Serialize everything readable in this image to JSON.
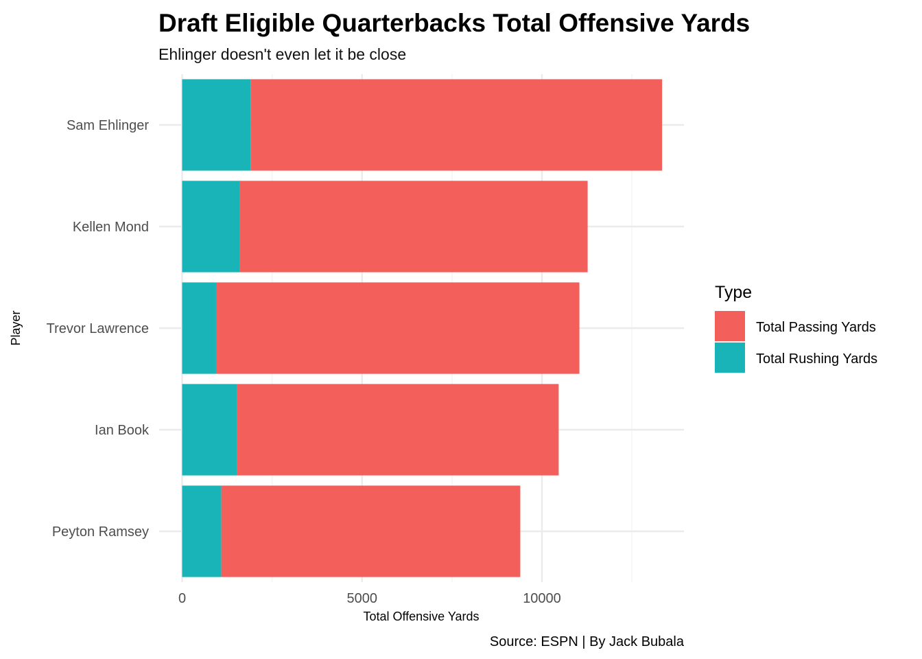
{
  "chart_data": {
    "type": "bar",
    "orientation": "horizontal",
    "stacked": true,
    "title": "Draft Eligible Quarterbacks Total Offensive Yards",
    "subtitle": "Ehlinger doesn't even let it be close",
    "xlabel": "Total Offensive Yards",
    "ylabel": "Player",
    "caption": "Source: ESPN | By Jack Bubala",
    "xlim": [
      0,
      14000
    ],
    "xticks": [
      0,
      5000,
      10000
    ],
    "grid": true,
    "legend_title": "Type",
    "legend_position": "right",
    "categories": [
      "Sam Ehlinger",
      "Kellen Mond",
      "Trevor Lawrence",
      "Ian Book",
      "Peyton Ramsey"
    ],
    "series": [
      {
        "name": "Total Rushing Yards",
        "color": "#19b4b8",
        "values": [
          1903,
          1609,
          943,
          1517,
          1089
        ]
      },
      {
        "name": "Total Passing Yards",
        "color": "#f35f5b",
        "values": [
          11436,
          9661,
          10098,
          8948,
          8309
        ]
      }
    ]
  }
}
